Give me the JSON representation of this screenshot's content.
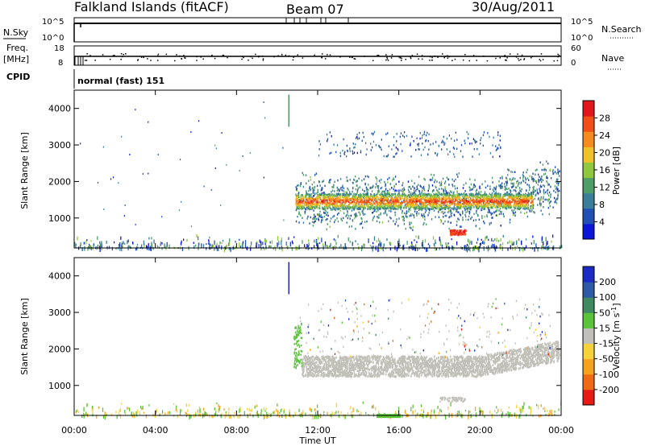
{
  "title": {
    "station": "Falkland Islands (fitACF)",
    "beam": "Beam 07",
    "date": "30/Aug/2011"
  },
  "top_panel": {
    "nsky_label": "N.Sky",
    "nsky_ticks": [
      "10^5",
      "10^0"
    ],
    "nsearch_label": "N.Search",
    "nsearch_ticks": [
      "10^5",
      "10^0"
    ],
    "freq_label": "Freq.",
    "freq_unit": "[MHz]",
    "freq_ticks": [
      "18",
      "8"
    ],
    "nave_label": "Nave",
    "nave_ticks": [
      "60",
      "0"
    ],
    "cpid_label": "CPID",
    "cpid_text": "normal (fast) 151"
  },
  "chart_data": [
    {
      "type": "heatmap",
      "name": "power",
      "ylabel": "Slant Range [km]",
      "xlabel": "Time UT",
      "xlim": [
        "00:00",
        "24:00"
      ],
      "ylim": [
        180,
        4500
      ],
      "yticks": [
        1000,
        2000,
        3000,
        4000
      ],
      "colorbar": {
        "label": "Power [dB]",
        "ticks": [
          4,
          8,
          12,
          16,
          20,
          24,
          28
        ],
        "range": [
          0,
          32
        ],
        "colors": [
          "#0a17d9",
          "#2150b5",
          "#3c7e9a",
          "#4f9e68",
          "#8fc83c",
          "#f0c22a",
          "#f58a1e",
          "#f24f16",
          "#e2161a"
        ]
      },
      "features": [
        {
          "kind": "main_band",
          "time_start": 10.8,
          "time_end": 22.6,
          "range_center": 1480,
          "range_halfwidth": 180,
          "power": 24
        },
        {
          "kind": "band_envelope",
          "time_start": 10.8,
          "time_end": 23.9,
          "range_low": 800,
          "range_high": 2700,
          "power": 8
        },
        {
          "kind": "blob",
          "time": 18.8,
          "range": 620,
          "power": 27
        },
        {
          "kind": "near_range_noise",
          "time_start": 0,
          "time_end": 24,
          "range_low": 180,
          "range_high": 420,
          "power": 5
        }
      ]
    },
    {
      "type": "heatmap",
      "name": "velocity",
      "ylabel": "Slant Range [km]",
      "xlabel": "Time UT",
      "xlim": [
        "00:00",
        "24:00"
      ],
      "ylim": [
        180,
        4500
      ],
      "yticks": [
        1000,
        2000,
        3000,
        4000
      ],
      "colorbar": {
        "label": "Velocity [m s",
        "label_exp": "-1",
        "ticks": [
          200,
          100,
          50,
          15,
          -15,
          -50,
          -100,
          -200
        ],
        "colors": [
          "#1b2bc4",
          "#2f5aa6",
          "#3f8a61",
          "#5bc33a",
          "#c0c0b8",
          "#f5d23a",
          "#f5a21e",
          "#f06a14",
          "#e81a14"
        ]
      },
      "features": [
        {
          "kind": "ground_scatter_band",
          "time_start": 11.2,
          "time_end": 23.9,
          "range_low": 1280,
          "range_high": 1820,
          "velocity": 0
        },
        {
          "kind": "green_edge",
          "time": 10.9,
          "range_low": 1500,
          "range_high": 2700,
          "velocity": 30
        }
      ]
    }
  ],
  "xaxis": {
    "ticks": [
      "00:00",
      "04:00",
      "08:00",
      "12:00",
      "16:00",
      "20:00",
      "00:00"
    ],
    "label": "Time UT"
  }
}
